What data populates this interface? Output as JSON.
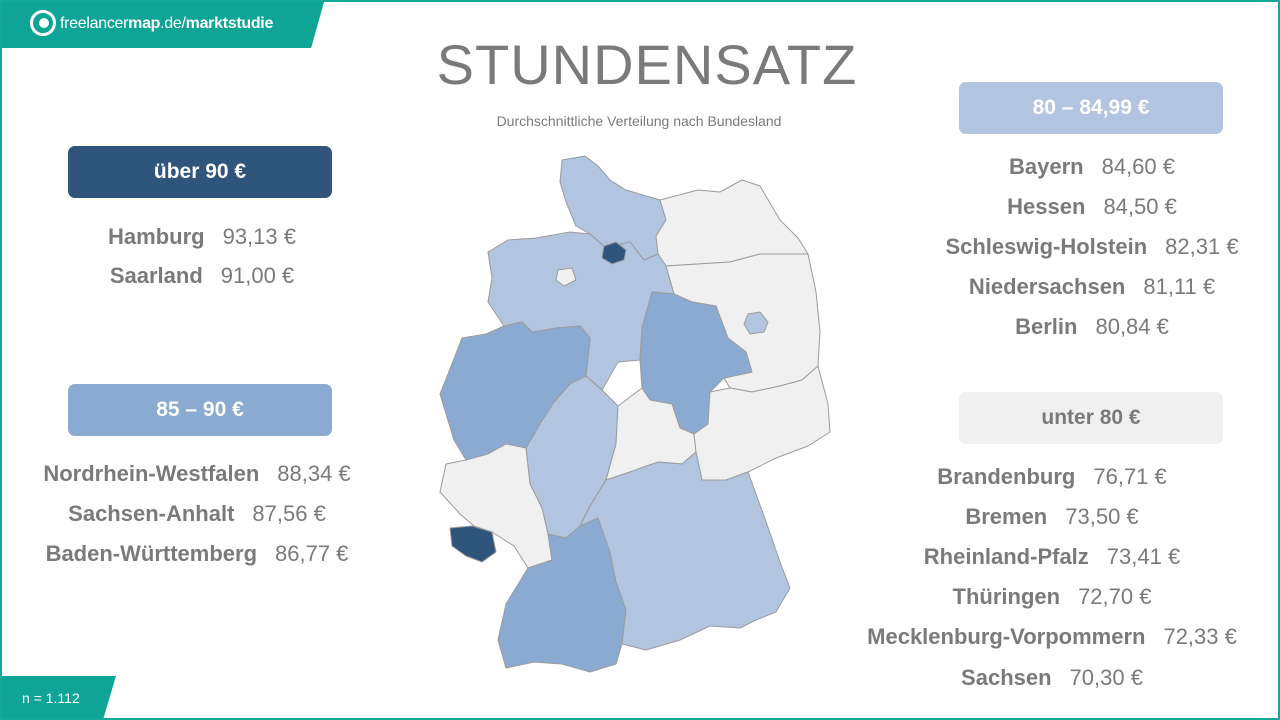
{
  "brand": {
    "name_light": "freelancer",
    "name_bold": "map",
    "domain": ".de/",
    "section": "marktstudie"
  },
  "title": "STUNDENSATZ",
  "subtitle": "Durchschnittliche  Verteilung nach Bundesland",
  "sample": "n = 1.112",
  "colors": {
    "brand": "#0fa596",
    "over90": "#2f557c",
    "r85_90": "#8aaad1",
    "r80_85": "#b1c5e0",
    "under80": "#f0f0f0"
  },
  "categories": {
    "over90": {
      "label": "über 90 €",
      "items": [
        {
          "name": "Hamburg",
          "value": "93,13 €"
        },
        {
          "name": "Saarland",
          "value": "91,00 €"
        }
      ]
    },
    "r85_90": {
      "label": "85 – 90 €",
      "items": [
        {
          "name": "Nordrhein-Westfalen",
          "value": "88,34 €"
        },
        {
          "name": "Sachsen-Anhalt",
          "value": "87,56 €"
        },
        {
          "name": "Baden-Württemberg",
          "value": "86,77 €"
        }
      ]
    },
    "r80_85": {
      "label": "80 – 84,99 €",
      "items": [
        {
          "name": "Bayern",
          "value": "84,60 €"
        },
        {
          "name": "Hessen",
          "value": "84,50 €"
        },
        {
          "name": "Schleswig-Holstein",
          "value": "82,31 €"
        },
        {
          "name": "Niedersachsen",
          "value": "81,11 €"
        },
        {
          "name": "Berlin",
          "value": "80,84 €"
        }
      ]
    },
    "under80": {
      "label": "unter 80 €",
      "items": [
        {
          "name": "Brandenburg",
          "value": "76,71 €"
        },
        {
          "name": "Bremen",
          "value": "73,50 €"
        },
        {
          "name": "Rheinland-Pfalz",
          "value": "73,41 €"
        },
        {
          "name": "Thüringen",
          "value": "72,70 €"
        },
        {
          "name": "Mecklenburg-Vorpommern",
          "value": "72,33 €"
        },
        {
          "name": "Sachsen",
          "value": "70,30 €"
        }
      ]
    }
  }
}
